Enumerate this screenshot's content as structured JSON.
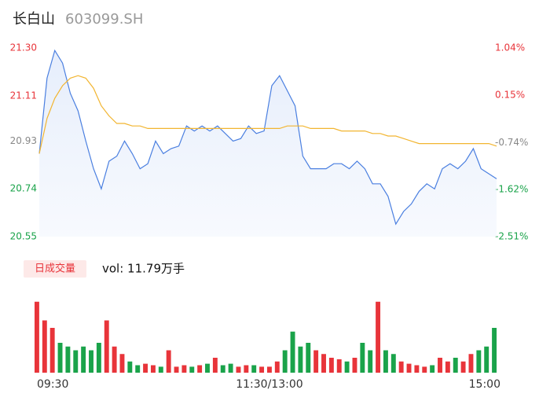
{
  "chart_data": [
    {
      "type": "line",
      "title": "长白山",
      "subtitle": "603099.SH",
      "series": [
        {
          "name": "price",
          "color": "#4a7fe0",
          "values": [
            20.88,
            21.18,
            21.29,
            21.24,
            21.12,
            21.05,
            20.93,
            20.82,
            20.74,
            20.85,
            20.87,
            20.93,
            20.88,
            20.82,
            20.84,
            20.93,
            20.88,
            20.9,
            20.91,
            20.99,
            20.97,
            20.99,
            20.97,
            20.99,
            20.96,
            20.93,
            20.94,
            20.99,
            20.96,
            20.97,
            21.15,
            21.19,
            21.13,
            21.07,
            20.87,
            20.82,
            20.82,
            20.82,
            20.84,
            20.84,
            20.82,
            20.85,
            20.82,
            20.76,
            20.76,
            20.71,
            20.6,
            20.65,
            20.68,
            20.73,
            20.76,
            20.74,
            20.82,
            20.84,
            20.82,
            20.85,
            20.9,
            20.82,
            20.8,
            20.78
          ]
        },
        {
          "name": "average",
          "color": "#f2b530",
          "values": [
            20.88,
            21.02,
            21.1,
            21.15,
            21.18,
            21.19,
            21.18,
            21.14,
            21.07,
            21.03,
            21.0,
            21.0,
            20.99,
            20.99,
            20.98,
            20.98,
            20.98,
            20.98,
            20.98,
            20.98,
            20.98,
            20.98,
            20.98,
            20.98,
            20.98,
            20.98,
            20.98,
            20.98,
            20.98,
            20.98,
            20.98,
            20.98,
            20.99,
            20.99,
            20.99,
            20.98,
            20.98,
            20.98,
            20.98,
            20.97,
            20.97,
            20.97,
            20.97,
            20.96,
            20.96,
            20.95,
            20.95,
            20.94,
            20.93,
            20.92,
            20.92,
            20.92,
            20.92,
            20.92,
            20.92,
            20.92,
            20.92,
            20.92,
            20.92,
            20.91
          ]
        }
      ],
      "ylim": [
        20.55,
        21.3
      ],
      "yticks": [
        {
          "value": 21.3,
          "label": "21.30"
        },
        21.11,
        20.93,
        20.74,
        20.55
      ],
      "y2lim": [
        -2.51,
        1.04
      ],
      "y2ticks": [
        {
          "value": 1.04,
          "label": "1.04%"
        },
        {
          "value": 0.15,
          "label": "0.15%"
        },
        {
          "value": -0.74,
          "label": "-0.74%"
        },
        {
          "value": -1.62,
          "label": "-1.62%"
        },
        {
          "value": -2.51,
          "label": "-2.51%"
        }
      ],
      "tick_colors": [
        "#e8343a",
        "#e8343a",
        "#888888",
        "#1aa34a",
        "#1aa34a"
      ]
    },
    {
      "type": "bar",
      "legend": "日成交量",
      "volume_label": "vol: 11.79万手",
      "up_color": "#e8343a",
      "down_color": "#1aa34a",
      "categories": [
        "09:30",
        null,
        null,
        null,
        null,
        null,
        null,
        null,
        null,
        null,
        null,
        null,
        null,
        null,
        null,
        null,
        null,
        null,
        null,
        null,
        null,
        null,
        null,
        null,
        null,
        null,
        null,
        null,
        null,
        null,
        "11:30/13:00",
        null,
        null,
        null,
        null,
        null,
        null,
        null,
        null,
        null,
        null,
        null,
        null,
        null,
        null,
        null,
        null,
        null,
        null,
        null,
        null,
        null,
        null,
        null,
        null,
        null,
        null,
        null,
        null,
        "15:00"
      ],
      "values": [
        95,
        70,
        60,
        40,
        35,
        30,
        35,
        30,
        40,
        70,
        35,
        25,
        15,
        10,
        12,
        10,
        8,
        30,
        8,
        10,
        8,
        10,
        12,
        20,
        10,
        12,
        8,
        10,
        10,
        8,
        8,
        15,
        30,
        55,
        35,
        40,
        30,
        25,
        20,
        18,
        15,
        20,
        40,
        30,
        95,
        30,
        25,
        15,
        12,
        10,
        8,
        10,
        20,
        15,
        20,
        15,
        25,
        30,
        35,
        60
      ],
      "ylim": [
        0,
        100
      ]
    }
  ]
}
